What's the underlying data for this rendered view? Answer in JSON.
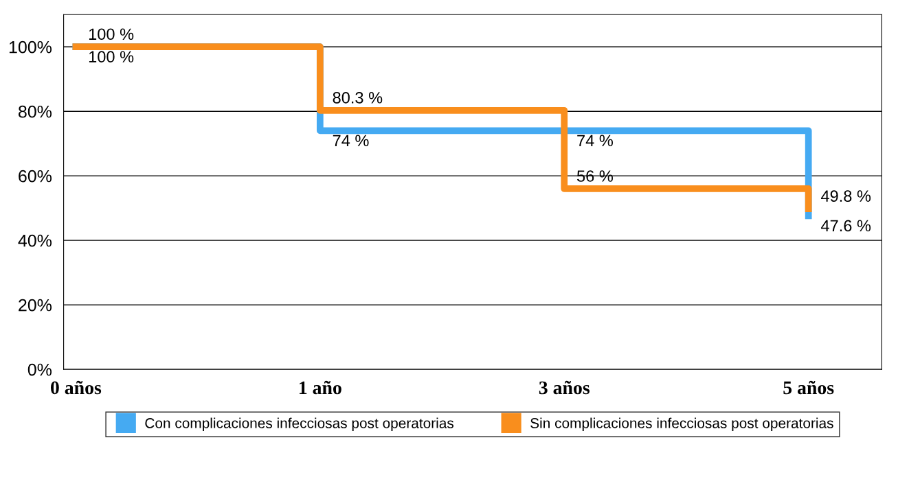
{
  "chart_data": {
    "type": "step",
    "categories": [
      "0 años",
      "1 año",
      "3 años",
      "5 años"
    ],
    "series": [
      {
        "name": "Con complicaciones infecciosas post operatorias",
        "color": "#45aaf2",
        "values": [
          100,
          74,
          74,
          47.6
        ],
        "value_labels": [
          "100 %",
          "74 %",
          "74 %",
          "47.6 %"
        ]
      },
      {
        "name": "Sin complicaciones infecciosas post operatorias",
        "color": "#f98e1d",
        "values": [
          100,
          80.3,
          56,
          49.8
        ],
        "value_labels": [
          "100 %",
          "80.3 %",
          "56 %",
          "49.8 %"
        ]
      }
    ],
    "ylim": [
      0,
      110
    ],
    "yticks": [
      {
        "value": 0,
        "label": "0%"
      },
      {
        "value": 20,
        "label": "20%"
      },
      {
        "value": 40,
        "label": "40%"
      },
      {
        "value": 60,
        "label": "60%"
      },
      {
        "value": 80,
        "label": "80%"
      },
      {
        "value": 100,
        "label": "100%"
      }
    ],
    "grid": "y",
    "legend": "bottom",
    "marker": "none",
    "line_style": "solid"
  }
}
